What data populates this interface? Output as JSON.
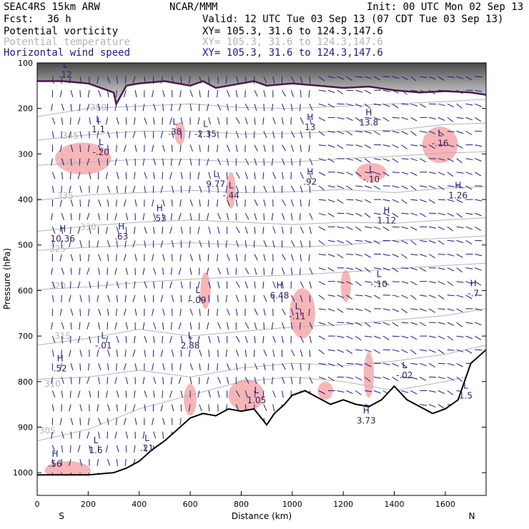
{
  "header": {
    "model": "SEAC4RS 15km ARW",
    "center": "NCAR/MMM",
    "init": "Init: 00 UTC Mon 02 Sep 13",
    "fcst_label": "Fcst:",
    "fcst_value": "36 h",
    "valid": "Valid: 12 UTC Tue 03 Sep 13 (07 CDT Tue 03 Sep 13)",
    "fields": [
      {
        "name": "Potential vorticity",
        "xy": "XY= 105.3, 31.6 to 124.3,147.6",
        "color": "#000000"
      },
      {
        "name": "Potential temperature",
        "xy": "XY= 105.3, 31.6 to 124.3,147.6",
        "color": "#b4b4b4"
      },
      {
        "name": "Horizontal wind speed",
        "xy": "XY= 105.3, 31.6 to 124.3,147.6",
        "color": "#1a1a8c"
      }
    ]
  },
  "chart_data": {
    "type": "cross-section",
    "xlabel": "Distance (km)",
    "ylabel": "Pressure (hPa)",
    "xlim": [
      0,
      1760
    ],
    "ylim": [
      1050,
      100
    ],
    "x_ticks": [
      0,
      200,
      400,
      600,
      800,
      1000,
      1200,
      1400,
      1600
    ],
    "y_ticks": [
      100,
      200,
      300,
      400,
      500,
      600,
      700,
      800,
      900,
      1000
    ],
    "left_end_label": "S",
    "right_end_label": "N",
    "theta_contours": [
      {
        "label": "305",
        "x": 40,
        "p": 908,
        "pts": [
          [
            0,
            930
          ],
          [
            200,
            905
          ],
          [
            400,
            860
          ],
          [
            600,
            830
          ],
          [
            800,
            800
          ],
          [
            1000,
            790
          ],
          [
            1200,
            800
          ],
          [
            1400,
            820
          ],
          [
            1600,
            800
          ],
          [
            1760,
            780
          ]
        ]
      },
      {
        "label": "310",
        "x": 60,
        "p": 805,
        "pts": [
          [
            0,
            795
          ],
          [
            200,
            790
          ],
          [
            400,
            775
          ],
          [
            600,
            790
          ],
          [
            800,
            770
          ],
          [
            1000,
            760
          ],
          [
            1200,
            765
          ],
          [
            1400,
            755
          ],
          [
            1600,
            740
          ],
          [
            1760,
            720
          ]
        ]
      },
      {
        "label": "315",
        "x": 100,
        "p": 700,
        "pts": [
          [
            0,
            720
          ],
          [
            200,
            705
          ],
          [
            400,
            685
          ],
          [
            600,
            700
          ],
          [
            800,
            690
          ],
          [
            1000,
            680
          ],
          [
            1200,
            675
          ],
          [
            1400,
            665
          ],
          [
            1600,
            655
          ],
          [
            1760,
            640
          ]
        ]
      },
      {
        "label": "320",
        "x": 80,
        "p": 590,
        "pts": [
          [
            0,
            598
          ],
          [
            200,
            592
          ],
          [
            400,
            582
          ],
          [
            600,
            575
          ],
          [
            800,
            570
          ],
          [
            1000,
            566
          ],
          [
            1200,
            560
          ],
          [
            1400,
            552
          ],
          [
            1600,
            545
          ],
          [
            1760,
            540
          ]
        ]
      },
      {
        "label": "325",
        "x": 80,
        "p": 508,
        "pts": [
          [
            0,
            512
          ],
          [
            200,
            505
          ],
          [
            400,
            500
          ],
          [
            600,
            495
          ],
          [
            800,
            500
          ],
          [
            1000,
            505
          ],
          [
            1200,
            500
          ],
          [
            1400,
            490
          ],
          [
            1600,
            485
          ],
          [
            1760,
            480
          ]
        ]
      },
      {
        "label": "330",
        "x": 200,
        "p": 460,
        "pts": [
          [
            0,
            470
          ],
          [
            200,
            458
          ],
          [
            400,
            450
          ],
          [
            600,
            445
          ],
          [
            800,
            450
          ],
          [
            1000,
            455
          ],
          [
            1200,
            450
          ],
          [
            1400,
            452
          ],
          [
            1600,
            445
          ],
          [
            1760,
            440
          ]
        ]
      },
      {
        "label": "335",
        "x": 110,
        "p": 392,
        "pts": [
          [
            0,
            402
          ],
          [
            200,
            390
          ],
          [
            400,
            385
          ],
          [
            600,
            380
          ],
          [
            800,
            385
          ],
          [
            1000,
            383
          ],
          [
            1200,
            378
          ],
          [
            1400,
            385
          ],
          [
            1600,
            375
          ],
          [
            1760,
            372
          ]
        ]
      },
      {
        "label": "340",
        "x": 120,
        "p": 318,
        "pts": [
          [
            0,
            325
          ],
          [
            200,
            318
          ],
          [
            400,
            312
          ],
          [
            600,
            312
          ],
          [
            800,
            318
          ],
          [
            1000,
            318
          ],
          [
            1200,
            310
          ],
          [
            1400,
            305
          ],
          [
            1600,
            298
          ],
          [
            1760,
            295
          ]
        ]
      },
      {
        "label": "345",
        "x": 130,
        "p": 260,
        "pts": [
          [
            0,
            270
          ],
          [
            200,
            258
          ],
          [
            400,
            250
          ],
          [
            600,
            250
          ],
          [
            800,
            256
          ],
          [
            1000,
            255
          ],
          [
            1200,
            250
          ],
          [
            1400,
            248
          ],
          [
            1600,
            235
          ],
          [
            1760,
            232
          ]
        ]
      },
      {
        "label": "350",
        "x": 240,
        "p": 198,
        "pts": [
          [
            0,
            218
          ],
          [
            200,
            200
          ],
          [
            400,
            195
          ],
          [
            600,
            190
          ],
          [
            800,
            198
          ],
          [
            1000,
            200
          ],
          [
            1200,
            195
          ],
          [
            1400,
            190
          ],
          [
            1600,
            185
          ],
          [
            1760,
            180
          ]
        ]
      }
    ],
    "pv_labels": [
      {
        "text": "L",
        "val": ".12",
        "x": 110,
        "p": 120
      },
      {
        "text": "L",
        "val": "1.1",
        "x": 240,
        "p": 240
      },
      {
        "text": "L",
        "val": "-.20",
        "x": 250,
        "p": 290
      },
      {
        "text": "L",
        "val": ".38",
        "x": 540,
        "p": 245
      },
      {
        "text": "L",
        "val": "-2.35",
        "x": 660,
        "p": 250
      },
      {
        "text": "L",
        "val": "9.77",
        "x": 700,
        "p": 360
      },
      {
        "text": "L",
        "val": "-.44",
        "x": 760,
        "p": 385
      },
      {
        "text": "H",
        "val": "13",
        "x": 1070,
        "p": 235
      },
      {
        "text": "H",
        "val": "13.8",
        "x": 1300,
        "p": 225
      },
      {
        "text": "L",
        "val": "-.16",
        "x": 1580,
        "p": 270
      },
      {
        "text": "H",
        "val": ".92",
        "x": 1070,
        "p": 355
      },
      {
        "text": "L",
        "val": "-.10",
        "x": 1310,
        "p": 350
      },
      {
        "text": "H",
        "val": "1.26",
        "x": 1650,
        "p": 385
      },
      {
        "text": "H",
        "val": "1.12",
        "x": 1370,
        "p": 440
      },
      {
        "text": "H",
        "val": "10.36",
        "x": 100,
        "p": 480
      },
      {
        "text": "H",
        "val": ".63",
        "x": 330,
        "p": 475
      },
      {
        "text": "H",
        "val": ".53",
        "x": 480,
        "p": 435
      },
      {
        "text": "L",
        "val": "-.10",
        "x": 1340,
        "p": 580
      },
      {
        "text": "H",
        "val": "-.7",
        "x": 1710,
        "p": 600
      },
      {
        "text": "L",
        "val": "-.09",
        "x": 630,
        "p": 615
      },
      {
        "text": "H",
        "val": "6.48",
        "x": 950,
        "p": 605
      },
      {
        "text": "L",
        "val": "-.11",
        "x": 1020,
        "p": 650
      },
      {
        "text": "L",
        "val": "-.01",
        "x": 260,
        "p": 715
      },
      {
        "text": "L",
        "val": "2.88",
        "x": 600,
        "p": 715
      },
      {
        "text": "H",
        "val": ".52",
        "x": 90,
        "p": 765
      },
      {
        "text": "L",
        "val": "-.02",
        "x": 1440,
        "p": 780
      },
      {
        "text": "L",
        "val": "1.05",
        "x": 860,
        "p": 835
      },
      {
        "text": "L",
        "val": "1.5",
        "x": 1680,
        "p": 825
      },
      {
        "text": "H",
        "val": "3.73",
        "x": 1290,
        "p": 880
      },
      {
        "text": "L",
        "val": "1.6",
        "x": 230,
        "p": 945
      },
      {
        "text": "L",
        "val": ".21",
        "x": 430,
        "p": 940
      },
      {
        "text": "H",
        "val": ".56",
        "x": 70,
        "p": 975
      }
    ],
    "terrain_p": [
      [
        0,
        1005
      ],
      [
        100,
        1005
      ],
      [
        200,
        1005
      ],
      [
        300,
        1000
      ],
      [
        350,
        990
      ],
      [
        400,
        975
      ],
      [
        450,
        950
      ],
      [
        500,
        930
      ],
      [
        550,
        905
      ],
      [
        600,
        880
      ],
      [
        650,
        870
      ],
      [
        700,
        875
      ],
      [
        750,
        860
      ],
      [
        800,
        865
      ],
      [
        850,
        860
      ],
      [
        900,
        895
      ],
      [
        930,
        870
      ],
      [
        970,
        850
      ],
      [
        1000,
        830
      ],
      [
        1050,
        820
      ],
      [
        1100,
        835
      ],
      [
        1150,
        850
      ],
      [
        1200,
        840
      ],
      [
        1250,
        850
      ],
      [
        1300,
        855
      ],
      [
        1350,
        840
      ],
      [
        1400,
        810
      ],
      [
        1450,
        840
      ],
      [
        1500,
        855
      ],
      [
        1550,
        870
      ],
      [
        1600,
        860
      ],
      [
        1650,
        840
      ],
      [
        1700,
        760
      ],
      [
        1760,
        730
      ]
    ],
    "tropopause_p": [
      [
        0,
        140
      ],
      [
        100,
        140
      ],
      [
        200,
        145
      ],
      [
        300,
        165
      ],
      [
        310,
        190
      ],
      [
        350,
        150
      ],
      [
        400,
        145
      ],
      [
        500,
        140
      ],
      [
        600,
        150
      ],
      [
        650,
        140
      ],
      [
        700,
        155
      ],
      [
        800,
        145
      ],
      [
        850,
        140
      ],
      [
        900,
        150
      ],
      [
        1000,
        145
      ],
      [
        1100,
        150
      ],
      [
        1200,
        155
      ],
      [
        1300,
        152
      ],
      [
        1400,
        160
      ],
      [
        1500,
        165
      ],
      [
        1600,
        162
      ],
      [
        1700,
        165
      ],
      [
        1760,
        170
      ]
    ],
    "pv_shaded_regions": [
      {
        "center": [
          180,
          310
        ],
        "rx": 110,
        "rp": 35
      },
      {
        "center": [
          560,
          255
        ],
        "rx": 20,
        "rp": 25
      },
      {
        "center": [
          760,
          380
        ],
        "rx": 18,
        "rp": 40
      },
      {
        "center": [
          1310,
          340
        ],
        "rx": 60,
        "rp": 20
      },
      {
        "center": [
          1580,
          280
        ],
        "rx": 70,
        "rp": 40
      },
      {
        "center": [
          660,
          600
        ],
        "rx": 20,
        "rp": 40
      },
      {
        "center": [
          1040,
          650
        ],
        "rx": 50,
        "rp": 55
      },
      {
        "center": [
          1210,
          590
        ],
        "rx": 20,
        "rp": 35
      },
      {
        "center": [
          1300,
          785
        ],
        "rx": 20,
        "rp": 50
      },
      {
        "center": [
          820,
          830
        ],
        "rx": 70,
        "rp": 35
      },
      {
        "center": [
          1130,
          820
        ],
        "rx": 30,
        "rp": 20
      },
      {
        "center": [
          600,
          840
        ],
        "rx": 25,
        "rp": 35
      },
      {
        "center": [
          120,
          995
        ],
        "rx": 90,
        "rp": 20
      }
    ]
  }
}
